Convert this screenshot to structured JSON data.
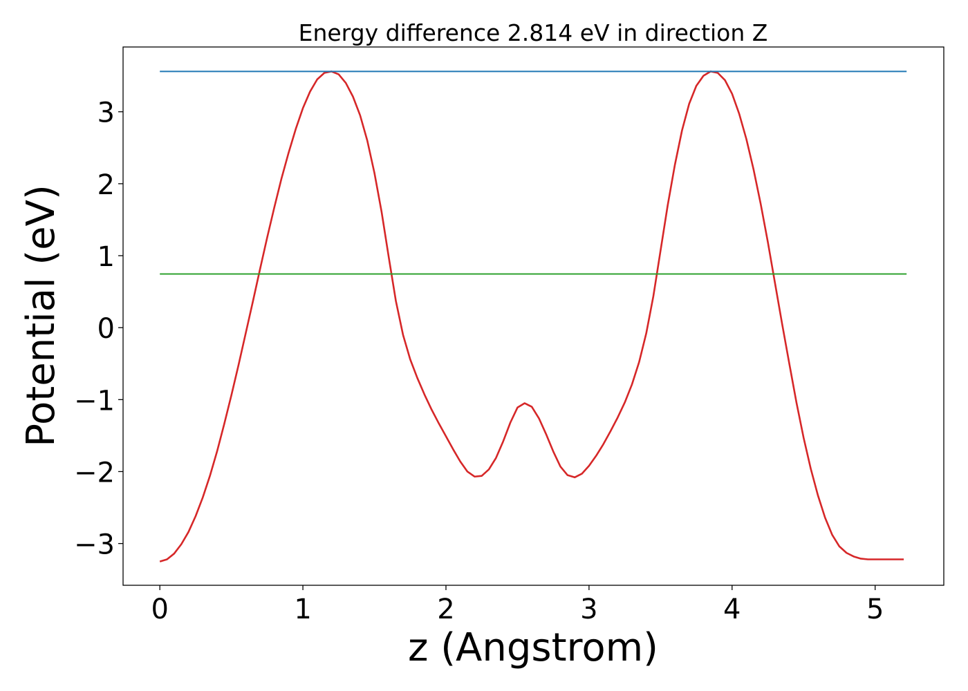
{
  "chart_data": {
    "type": "line",
    "title": "Energy difference 2.814 eV in direction Z",
    "xlabel": "z (Angstrom)",
    "ylabel": "Potential (eV)",
    "xlim": [
      -0.257,
      5.48
    ],
    "ylim": [
      -3.58,
      3.9
    ],
    "xticks": [
      0,
      1,
      2,
      3,
      4,
      5
    ],
    "xtick_labels": [
      "0",
      "1",
      "2",
      "3",
      "4",
      "5"
    ],
    "yticks": [
      -3,
      -2,
      -1,
      0,
      1,
      2,
      3
    ],
    "ytick_labels": [
      "−3",
      "−2",
      "−1",
      "0",
      "1",
      "2",
      "3"
    ],
    "grid": false,
    "legend": "none",
    "series": [
      {
        "color": "#d62728",
        "x": [
          0.0,
          0.05,
          0.1,
          0.15,
          0.2,
          0.25,
          0.3,
          0.35,
          0.4,
          0.45,
          0.5,
          0.55,
          0.6,
          0.65,
          0.7,
          0.75,
          0.8,
          0.85,
          0.9,
          0.95,
          1.0,
          1.05,
          1.1,
          1.15,
          1.2,
          1.25,
          1.3,
          1.35,
          1.4,
          1.45,
          1.5,
          1.55,
          1.6,
          1.65,
          1.7,
          1.75,
          1.8,
          1.85,
          1.9,
          1.95,
          2.0,
          2.05,
          2.1,
          2.15,
          2.2,
          2.25,
          2.3,
          2.35,
          2.4,
          2.45,
          2.5,
          2.55,
          2.6,
          2.65,
          2.7,
          2.75,
          2.8,
          2.85,
          2.9,
          2.95,
          3.0,
          3.05,
          3.1,
          3.15,
          3.2,
          3.25,
          3.3,
          3.35,
          3.4,
          3.45,
          3.5,
          3.55,
          3.6,
          3.65,
          3.7,
          3.75,
          3.8,
          3.85,
          3.9,
          3.95,
          4.0,
          4.05,
          4.1,
          4.15,
          4.2,
          4.25,
          4.3,
          4.35,
          4.4,
          4.45,
          4.5,
          4.55,
          4.6,
          4.65,
          4.7,
          4.75,
          4.8,
          4.85,
          4.9,
          4.95,
          5.0,
          5.05,
          5.1,
          5.15,
          5.2
        ],
        "y": [
          -3.25,
          -3.22,
          -3.14,
          -3.01,
          -2.84,
          -2.62,
          -2.36,
          -2.06,
          -1.72,
          -1.34,
          -0.94,
          -0.52,
          -0.08,
          0.36,
          0.81,
          1.25,
          1.67,
          2.07,
          2.43,
          2.76,
          3.05,
          3.28,
          3.45,
          3.54,
          3.56,
          3.52,
          3.4,
          3.21,
          2.95,
          2.6,
          2.15,
          1.61,
          0.98,
          0.37,
          -0.1,
          -0.44,
          -0.7,
          -0.93,
          -1.14,
          -1.33,
          -1.51,
          -1.69,
          -1.86,
          -2.0,
          -2.07,
          -2.06,
          -1.97,
          -1.81,
          -1.58,
          -1.32,
          -1.11,
          -1.05,
          -1.1,
          -1.26,
          -1.48,
          -1.72,
          -1.93,
          -2.05,
          -2.08,
          -2.03,
          -1.92,
          -1.78,
          -1.62,
          -1.44,
          -1.25,
          -1.04,
          -0.79,
          -0.48,
          -0.08,
          0.44,
          1.07,
          1.7,
          2.26,
          2.74,
          3.11,
          3.36,
          3.5,
          3.56,
          3.54,
          3.44,
          3.25,
          2.97,
          2.62,
          2.2,
          1.72,
          1.19,
          0.62,
          0.05,
          -0.5,
          -1.04,
          -1.53,
          -1.96,
          -2.33,
          -2.64,
          -2.88,
          -3.04,
          -3.13,
          -3.18,
          -3.21,
          -3.22,
          -3.22,
          -3.22,
          -3.22,
          -3.22,
          -3.22
        ]
      },
      {
        "color": "#1f77b4",
        "x": [
          0.0,
          5.22
        ],
        "y": [
          3.56,
          3.56
        ]
      },
      {
        "color": "#2ca02c",
        "x": [
          0.0,
          5.22
        ],
        "y": [
          0.746,
          0.746
        ]
      }
    ]
  }
}
